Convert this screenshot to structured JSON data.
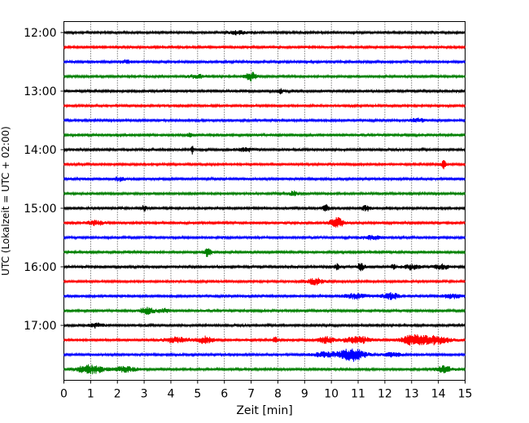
{
  "chart_data": {
    "type": "line",
    "title": "",
    "xlabel": "Zeit  [min]",
    "ylabel": "UTC (Lokalzeit = UTC + 02:00)",
    "xlim": [
      0,
      15
    ],
    "x_ticks": [
      0,
      1,
      2,
      3,
      4,
      5,
      6,
      7,
      8,
      9,
      10,
      11,
      12,
      13,
      14,
      15
    ],
    "y_tick_labels": [
      "12:00",
      "13:00",
      "14:00",
      "15:00",
      "16:00",
      "17:00"
    ],
    "grid": "vertical dotted at each minute",
    "trace_interval_min": 15,
    "color_cycle": [
      "#000000",
      "#ff0000",
      "#0000ff",
      "#008000"
    ],
    "series": [
      {
        "start": "12:00",
        "color": "#000000",
        "events": [
          {
            "t": 6.5,
            "a": 2.5,
            "w": 0.3
          }
        ]
      },
      {
        "start": "12:15",
        "color": "#ff0000",
        "events": []
      },
      {
        "start": "12:30",
        "color": "#0000ff",
        "events": [
          {
            "t": 2.3,
            "a": 2,
            "w": 0.2
          }
        ]
      },
      {
        "start": "12:45",
        "color": "#008000",
        "events": [
          {
            "t": 7.0,
            "a": 5,
            "w": 0.2
          },
          {
            "t": 5.0,
            "a": 2,
            "w": 0.3
          }
        ]
      },
      {
        "start": "13:00",
        "color": "#000000",
        "events": [
          {
            "t": 8.1,
            "a": 3,
            "w": 0.1
          }
        ]
      },
      {
        "start": "13:15",
        "color": "#ff0000",
        "events": []
      },
      {
        "start": "13:30",
        "color": "#0000ff",
        "events": [
          {
            "t": 13.2,
            "a": 2,
            "w": 0.3
          }
        ]
      },
      {
        "start": "13:45",
        "color": "#008000",
        "events": [
          {
            "t": 4.7,
            "a": 3,
            "w": 0.1
          }
        ]
      },
      {
        "start": "14:00",
        "color": "#000000",
        "events": [
          {
            "t": 4.8,
            "a": 7,
            "w": 0.05
          },
          {
            "t": 6.8,
            "a": 2,
            "w": 0.3
          }
        ]
      },
      {
        "start": "14:15",
        "color": "#ff0000",
        "events": [
          {
            "t": 14.2,
            "a": 5,
            "w": 0.08
          }
        ]
      },
      {
        "start": "14:30",
        "color": "#0000ff",
        "events": [
          {
            "t": 2.1,
            "a": 2.5,
            "w": 0.2
          }
        ]
      },
      {
        "start": "14:45",
        "color": "#008000",
        "events": [
          {
            "t": 8.6,
            "a": 2.5,
            "w": 0.15
          }
        ]
      },
      {
        "start": "15:00",
        "color": "#000000",
        "events": [
          {
            "t": 3.0,
            "a": 4,
            "w": 0.08
          },
          {
            "t": 9.8,
            "a": 4,
            "w": 0.12
          },
          {
            "t": 11.3,
            "a": 3,
            "w": 0.15
          }
        ]
      },
      {
        "start": "15:15",
        "color": "#ff0000",
        "events": [
          {
            "t": 10.2,
            "a": 6,
            "w": 0.25
          },
          {
            "t": 1.2,
            "a": 2.5,
            "w": 0.3
          }
        ]
      },
      {
        "start": "15:30",
        "color": "#0000ff",
        "events": [
          {
            "t": 11.5,
            "a": 2,
            "w": 0.4
          }
        ]
      },
      {
        "start": "15:45",
        "color": "#008000",
        "events": [
          {
            "t": 5.4,
            "a": 6,
            "w": 0.12
          }
        ]
      },
      {
        "start": "16:00",
        "color": "#000000",
        "events": [
          {
            "t": 10.2,
            "a": 3.5,
            "w": 0.1
          },
          {
            "t": 11.1,
            "a": 4,
            "w": 0.15
          },
          {
            "t": 12.3,
            "a": 3,
            "w": 0.1
          },
          {
            "t": 13.0,
            "a": 3,
            "w": 0.3
          },
          {
            "t": 14.1,
            "a": 3,
            "w": 0.3
          }
        ]
      },
      {
        "start": "16:15",
        "color": "#ff0000",
        "events": [
          {
            "t": 9.4,
            "a": 3.5,
            "w": 0.3
          }
        ]
      },
      {
        "start": "16:30",
        "color": "#0000ff",
        "events": [
          {
            "t": 10.9,
            "a": 3,
            "w": 0.4
          },
          {
            "t": 12.2,
            "a": 4,
            "w": 0.3
          },
          {
            "t": 14.5,
            "a": 3,
            "w": 0.3
          }
        ]
      },
      {
        "start": "16:45",
        "color": "#008000",
        "events": [
          {
            "t": 3.1,
            "a": 4,
            "w": 0.25
          },
          {
            "t": 3.7,
            "a": 2.5,
            "w": 0.2
          }
        ]
      },
      {
        "start": "17:00",
        "color": "#000000",
        "events": [
          {
            "t": 1.2,
            "a": 2.5,
            "w": 0.25
          }
        ]
      },
      {
        "start": "17:15",
        "color": "#ff0000",
        "events": [
          {
            "t": 4.2,
            "a": 3,
            "w": 0.5
          },
          {
            "t": 5.3,
            "a": 4,
            "w": 0.3
          },
          {
            "t": 7.9,
            "a": 4,
            "w": 0.08
          },
          {
            "t": 9.8,
            "a": 4,
            "w": 0.25
          },
          {
            "t": 11.0,
            "a": 4,
            "w": 0.5
          },
          {
            "t": 13.0,
            "a": 5,
            "w": 0.4
          },
          {
            "t": 13.8,
            "a": 5,
            "w": 0.6
          }
        ]
      },
      {
        "start": "17:30",
        "color": "#0000ff",
        "events": [
          {
            "t": 10.8,
            "a": 8,
            "w": 0.45
          },
          {
            "t": 9.8,
            "a": 3,
            "w": 0.5
          },
          {
            "t": 12.3,
            "a": 2.5,
            "w": 0.3
          }
        ]
      },
      {
        "start": "17:45",
        "color": "#008000",
        "events": [
          {
            "t": 1.0,
            "a": 5,
            "w": 0.5
          },
          {
            "t": 2.3,
            "a": 3,
            "w": 0.4
          },
          {
            "t": 14.2,
            "a": 3.5,
            "w": 0.3
          }
        ]
      }
    ]
  }
}
